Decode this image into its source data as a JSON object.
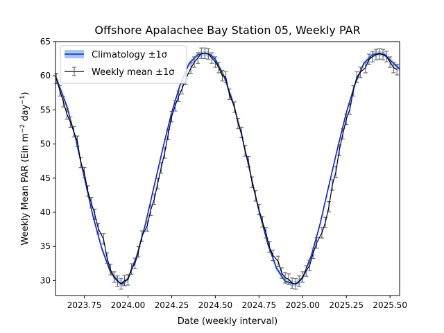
{
  "chart_data": {
    "type": "line",
    "title": "Offshore Apalachee Bay Station 05, Weekly PAR",
    "xlabel": "Date (weekly interval)",
    "ylabel": "Weekly Mean PAR (Ein m",
    "ylabel_unit_exponent": "−2",
    "ylabel_mid": " day",
    "ylabel_unit_exponent2": "−1",
    "ylabel_end": ")",
    "xlim": [
      2023.585,
      2025.555
    ],
    "ylim": [
      27.8,
      65.0
    ],
    "xticks": [
      2023.75,
      2024.0,
      2024.25,
      2024.5,
      2024.75,
      2025.0,
      2025.25,
      2025.5
    ],
    "xtick_labels": [
      "2023.75",
      "2024.00",
      "2024.25",
      "2024.50",
      "2024.75",
      "2025.00",
      "2025.25",
      "2025.50"
    ],
    "yticks": [
      30,
      35,
      40,
      45,
      50,
      55,
      60,
      65
    ],
    "ytick_labels": [
      "30",
      "35",
      "40",
      "45",
      "50",
      "55",
      "60",
      "65"
    ],
    "grid": false,
    "legend_position": "top-left",
    "series": [
      {
        "name": "Climatology ±1σ",
        "kind": "line-with-band",
        "color": "#0022ee",
        "band_color": "#a8c8f0",
        "x": [
          2023.585,
          2023.65,
          2023.7,
          2023.75,
          2023.8,
          2023.85,
          2023.9,
          2023.95,
          2023.97,
          2024.0,
          2024.05,
          2024.1,
          2024.15,
          2024.2,
          2024.25,
          2024.3,
          2024.35,
          2024.4,
          2024.44,
          2024.47,
          2024.5,
          2024.55,
          2024.6,
          2024.65,
          2024.7,
          2024.75,
          2024.8,
          2024.85,
          2024.9,
          2024.95,
          2024.97,
          2025.0,
          2025.05,
          2025.1,
          2025.15,
          2025.2,
          2025.25,
          2025.3,
          2025.35,
          2025.4,
          2025.44,
          2025.47,
          2025.5,
          2025.555
        ],
        "values": [
          60.0,
          55.5,
          50.8,
          45.1,
          39.4,
          34.7,
          31.2,
          29.7,
          29.5,
          30.3,
          33.6,
          38.3,
          43.9,
          49.4,
          54.6,
          58.8,
          61.8,
          63.1,
          63.3,
          63.1,
          62.4,
          59.9,
          56.2,
          51.4,
          45.8,
          40.2,
          35.4,
          31.8,
          29.9,
          29.5,
          29.6,
          30.4,
          33.7,
          38.3,
          43.9,
          49.4,
          54.6,
          58.8,
          61.8,
          63.1,
          63.3,
          63.1,
          62.3,
          61.0
        ],
        "band_halfwidth": 0.4
      },
      {
        "name": "Weekly mean ±1σ",
        "kind": "errorbar-line",
        "color": "#000000",
        "errorbar_color": "#555555",
        "x": [
          2023.59,
          2023.61,
          2023.63,
          2023.65,
          2023.67,
          2023.69,
          2023.71,
          2023.73,
          2023.75,
          2023.77,
          2023.79,
          2023.81,
          2023.83,
          2023.86,
          2023.88,
          2023.9,
          2023.92,
          2023.94,
          2023.96,
          2023.98,
          2024.0,
          2024.02,
          2024.04,
          2024.06,
          2024.08,
          2024.11,
          2024.13,
          2024.15,
          2024.17,
          2024.19,
          2024.21,
          2024.23,
          2024.25,
          2024.27,
          2024.29,
          2024.31,
          2024.33,
          2024.36,
          2024.38,
          2024.4,
          2024.42,
          2024.44,
          2024.46,
          2024.48,
          2024.5,
          2024.52,
          2024.54,
          2024.56,
          2024.58,
          2024.61,
          2024.63,
          2024.65,
          2024.67,
          2024.69,
          2024.71,
          2024.73,
          2024.75,
          2024.77,
          2024.79,
          2024.81,
          2024.83,
          2024.86,
          2024.88,
          2024.9,
          2024.92,
          2024.94,
          2024.96,
          2024.98,
          2025.0,
          2025.02,
          2025.04,
          2025.06,
          2025.08,
          2025.11,
          2025.13,
          2025.15,
          2025.17,
          2025.19,
          2025.21,
          2025.23,
          2025.25,
          2025.27,
          2025.29,
          2025.31,
          2025.33,
          2025.36,
          2025.38,
          2025.4,
          2025.42,
          2025.44,
          2025.46,
          2025.48,
          2025.5,
          2025.52,
          2025.54
        ],
        "values": [
          59.6,
          57.8,
          56.2,
          54.4,
          53.2,
          51.8,
          50.4,
          47.3,
          45.8,
          43.1,
          41.4,
          39.7,
          37.6,
          36.1,
          33.3,
          31.6,
          30.5,
          29.9,
          29.5,
          30.0,
          30.1,
          31.7,
          32.5,
          34.2,
          36.5,
          38.0,
          40.3,
          41.9,
          44.2,
          46.5,
          48.7,
          51.4,
          54.0,
          55.6,
          57.0,
          58.1,
          59.5,
          61.1,
          62.0,
          62.6,
          63.3,
          63.3,
          63.2,
          62.6,
          62.0,
          61.2,
          60.0,
          59.8,
          57.3,
          55.4,
          53.0,
          51.7,
          49.0,
          47.4,
          44.4,
          42.4,
          40.4,
          38.6,
          37.0,
          34.9,
          33.7,
          32.8,
          31.1,
          30.4,
          30.2,
          29.6,
          29.5,
          29.9,
          30.5,
          31.4,
          32.2,
          34.0,
          35.5,
          37.0,
          38.5,
          40.8,
          44.0,
          45.9,
          49.1,
          51.5,
          53.6,
          55.1,
          57.8,
          59.8,
          60.5,
          61.2,
          62.4,
          62.8,
          63.1,
          63.2,
          63.1,
          62.8,
          62.0,
          61.2,
          60.9
        ],
        "errors": [
          0.35,
          0.35,
          0.35,
          0.35,
          0.35,
          0.35,
          0.35,
          0.35,
          0.35,
          0.35,
          0.35,
          0.35,
          0.35,
          0.35,
          0.35,
          0.35,
          0.35,
          0.35,
          0.35,
          0.35,
          0.35,
          0.35,
          0.35,
          0.35,
          0.35,
          0.35,
          0.35,
          0.35,
          0.35,
          0.35,
          0.35,
          0.35,
          0.35,
          0.35,
          0.35,
          0.35,
          0.35,
          0.35,
          0.35,
          0.35,
          0.35,
          0.35,
          0.35,
          0.35,
          0.35,
          0.35,
          0.35,
          0.35,
          0.35,
          0.35,
          0.35,
          0.35,
          0.35,
          0.35,
          0.35,
          0.35,
          0.35,
          0.35,
          0.35,
          0.35,
          0.35,
          0.35,
          0.35,
          0.35,
          0.35,
          0.35,
          0.35,
          0.35,
          0.35,
          0.35,
          0.35,
          0.35,
          0.35,
          0.35,
          0.35,
          0.35,
          0.35,
          0.35,
          0.35,
          0.35,
          0.35,
          0.35,
          0.35,
          0.35,
          0.35,
          0.35,
          0.35,
          0.35,
          0.35,
          0.35,
          0.35,
          0.35,
          0.35,
          0.35,
          0.35
        ]
      }
    ]
  }
}
